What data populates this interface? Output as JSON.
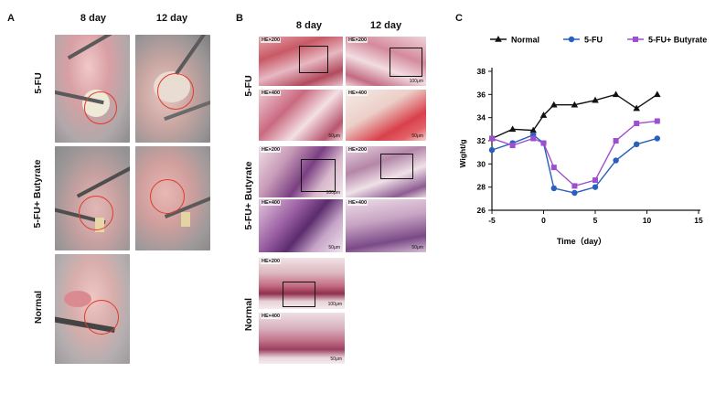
{
  "panelA": {
    "letter": "A",
    "columns": [
      "8 day",
      "12 day"
    ],
    "rows": [
      "5-FU",
      "5-FU+ Butyrate",
      "Normal"
    ]
  },
  "panelB": {
    "letter": "B",
    "columns": [
      "8 day",
      "12 day"
    ],
    "rows": [
      "5-FU",
      "5-FU+ Butyrate",
      "Normal"
    ],
    "tags": {
      "he200": "HE×200",
      "he400": "HE×400"
    },
    "scales": {
      "s100": "100μm",
      "s50": "50μm"
    }
  },
  "panelC": {
    "letter": "C",
    "legend": [
      "Normal",
      "5-FU",
      "5-FU+ Butyrate"
    ]
  },
  "chart_data": {
    "type": "line",
    "xlabel": "Time（day）",
    "ylabel": "Wight/g",
    "xlim": [
      -5,
      15
    ],
    "ylim": [
      26,
      38
    ],
    "xticks": [
      -5,
      0,
      5,
      10,
      15
    ],
    "yticks": [
      26,
      28,
      30,
      32,
      34,
      36,
      38
    ],
    "legend_position": "top",
    "series": [
      {
        "name": "Normal",
        "color": "#111111",
        "marker": "triangle",
        "x": [
          -5,
          -3,
          -1,
          0,
          1,
          3,
          5,
          7,
          9,
          11
        ],
        "y": [
          32.2,
          33.0,
          32.9,
          34.2,
          35.1,
          35.1,
          35.5,
          36.0,
          34.8,
          36.0
        ]
      },
      {
        "name": "5-FU",
        "color": "#2a5fbf",
        "marker": "circle",
        "x": [
          -5,
          -3,
          -1,
          0,
          1,
          3,
          5,
          7,
          9,
          11
        ],
        "y": [
          31.2,
          31.8,
          32.5,
          31.8,
          27.9,
          27.5,
          28.0,
          30.3,
          31.7,
          32.2
        ]
      },
      {
        "name": "5-FU+ Butyrate",
        "color": "#9d4fd0",
        "marker": "square",
        "x": [
          -5,
          -3,
          -1,
          0,
          1,
          3,
          5,
          7,
          9,
          11
        ],
        "y": [
          32.2,
          31.6,
          32.2,
          31.8,
          29.7,
          28.1,
          28.6,
          32.0,
          33.5,
          33.7
        ]
      }
    ]
  }
}
